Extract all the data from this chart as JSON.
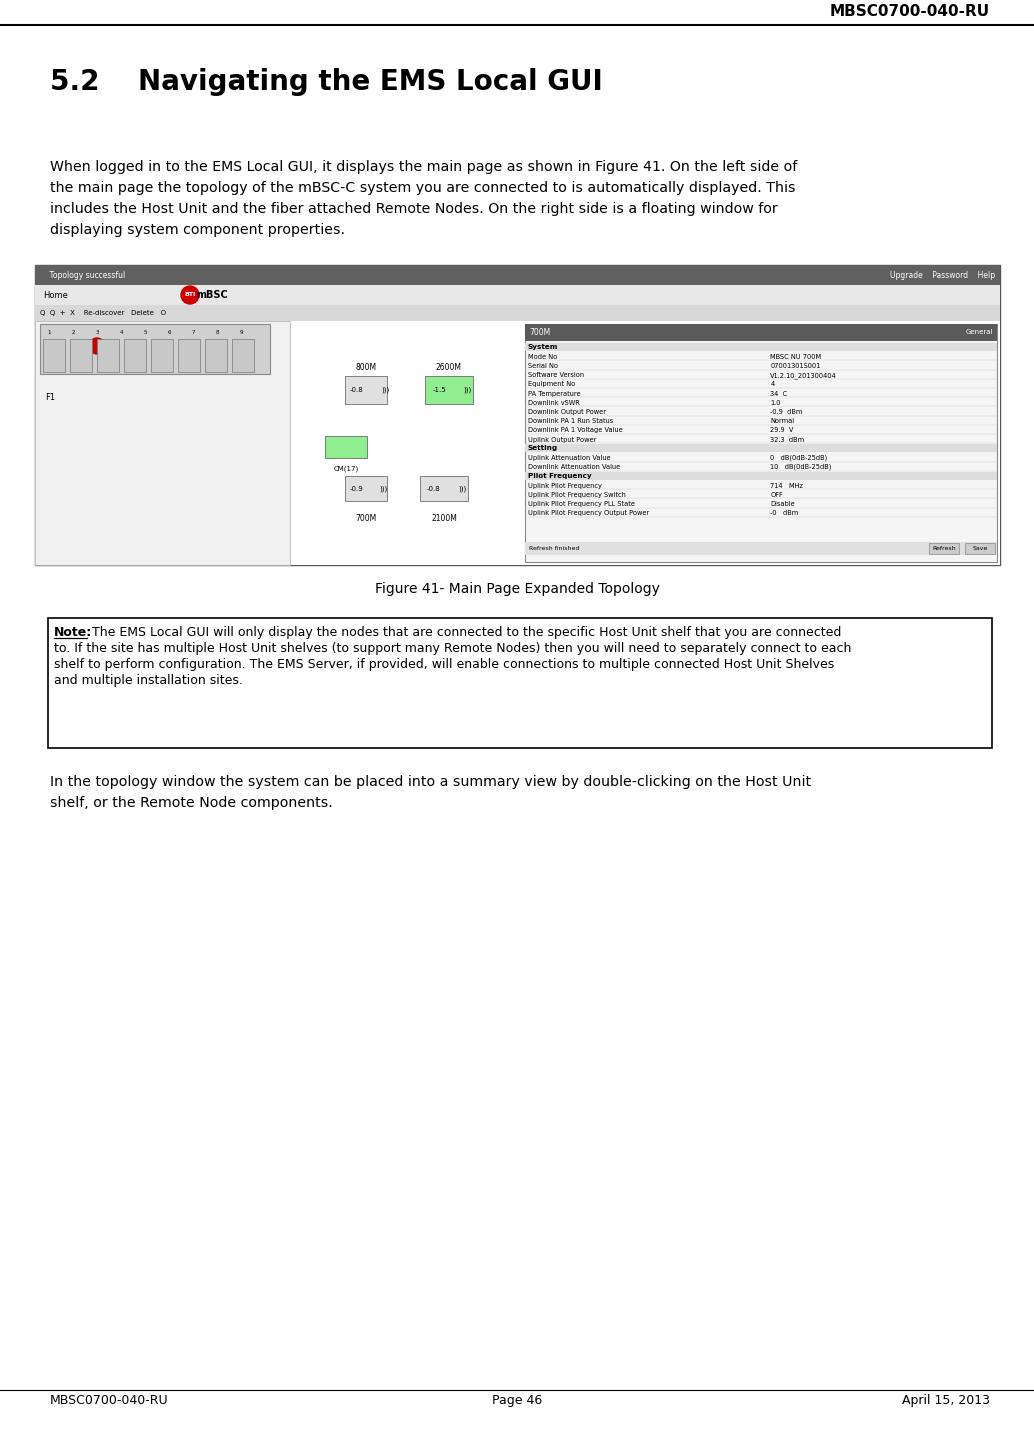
{
  "header_text": "MBSC0700-040-RU",
  "section_title": "5.2    Navigating the EMS Local GUI",
  "body_lines": [
    "When logged in to the EMS Local GUI, it displays the main page as shown in Figure 41. On the left side of",
    "the main page the topology of the mBSC-C system you are connected to is automatically displayed. This",
    "includes the Host Unit and the fiber attached Remote Nodes. On the right side is a floating window for",
    "displaying system component properties."
  ],
  "figure_caption": "Figure 41- Main Page Expanded Topology",
  "note_lines": [
    "Note: The EMS Local GUI will only display the nodes that are connected to the specific Host Unit shelf that you are connected",
    "to. If the site has multiple Host Unit shelves (to support many Remote Nodes) then you will need to separately connect to each",
    "shelf to perform configuration. The EMS Server, if provided, will enable connections to multiple connected Host Unit Shelves",
    "and multiple installation sites."
  ],
  "bottom_lines": [
    "In the topology window the system can be placed into a summary view by double-clicking on the Host Unit",
    "shelf, or the Remote Node components."
  ],
  "footer_left": "MBSC0700-040-RU",
  "footer_center": "Page 46",
  "footer_right": "April 15, 2013",
  "bg_color": "#ffffff",
  "text_color": "#000000",
  "prop_rows": [
    [
      "System",
      ""
    ],
    [
      "Mode No",
      "MBSC NU 700M"
    ],
    [
      "Serial No",
      "07001301S001"
    ],
    [
      "Software Version",
      "V1.2.10_201300404"
    ],
    [
      "Equipment No",
      "4"
    ],
    [
      "PA Temperature",
      "34  C"
    ],
    [
      "Downlink vSWR",
      "1.0"
    ],
    [
      "Downlink Output Power",
      "-0.9  dBm"
    ],
    [
      "Downlink PA 1 Run Status",
      "Normal"
    ],
    [
      "Downlink PA 1 Voltage Value",
      "29.9  V"
    ],
    [
      "Uplink Output Power",
      "32.3  dBm"
    ],
    [
      "Setting",
      ""
    ],
    [
      "Uplink Attenuation Value",
      "0   dB(0dB-25dB)"
    ],
    [
      "Downlink Attenuation Value",
      "10   dB(0dB-25dB)"
    ],
    [
      "Pilot Frequency",
      ""
    ],
    [
      "Uplink Pilot Frequency",
      "714   MHz"
    ],
    [
      "Uplink Pilot Frequency Switch",
      "OFF"
    ],
    [
      "Uplink Pilot Frequency PLL State",
      "Disable"
    ],
    [
      "Uplink Pilot Frequency Output Power",
      "-0   dBm"
    ]
  ]
}
